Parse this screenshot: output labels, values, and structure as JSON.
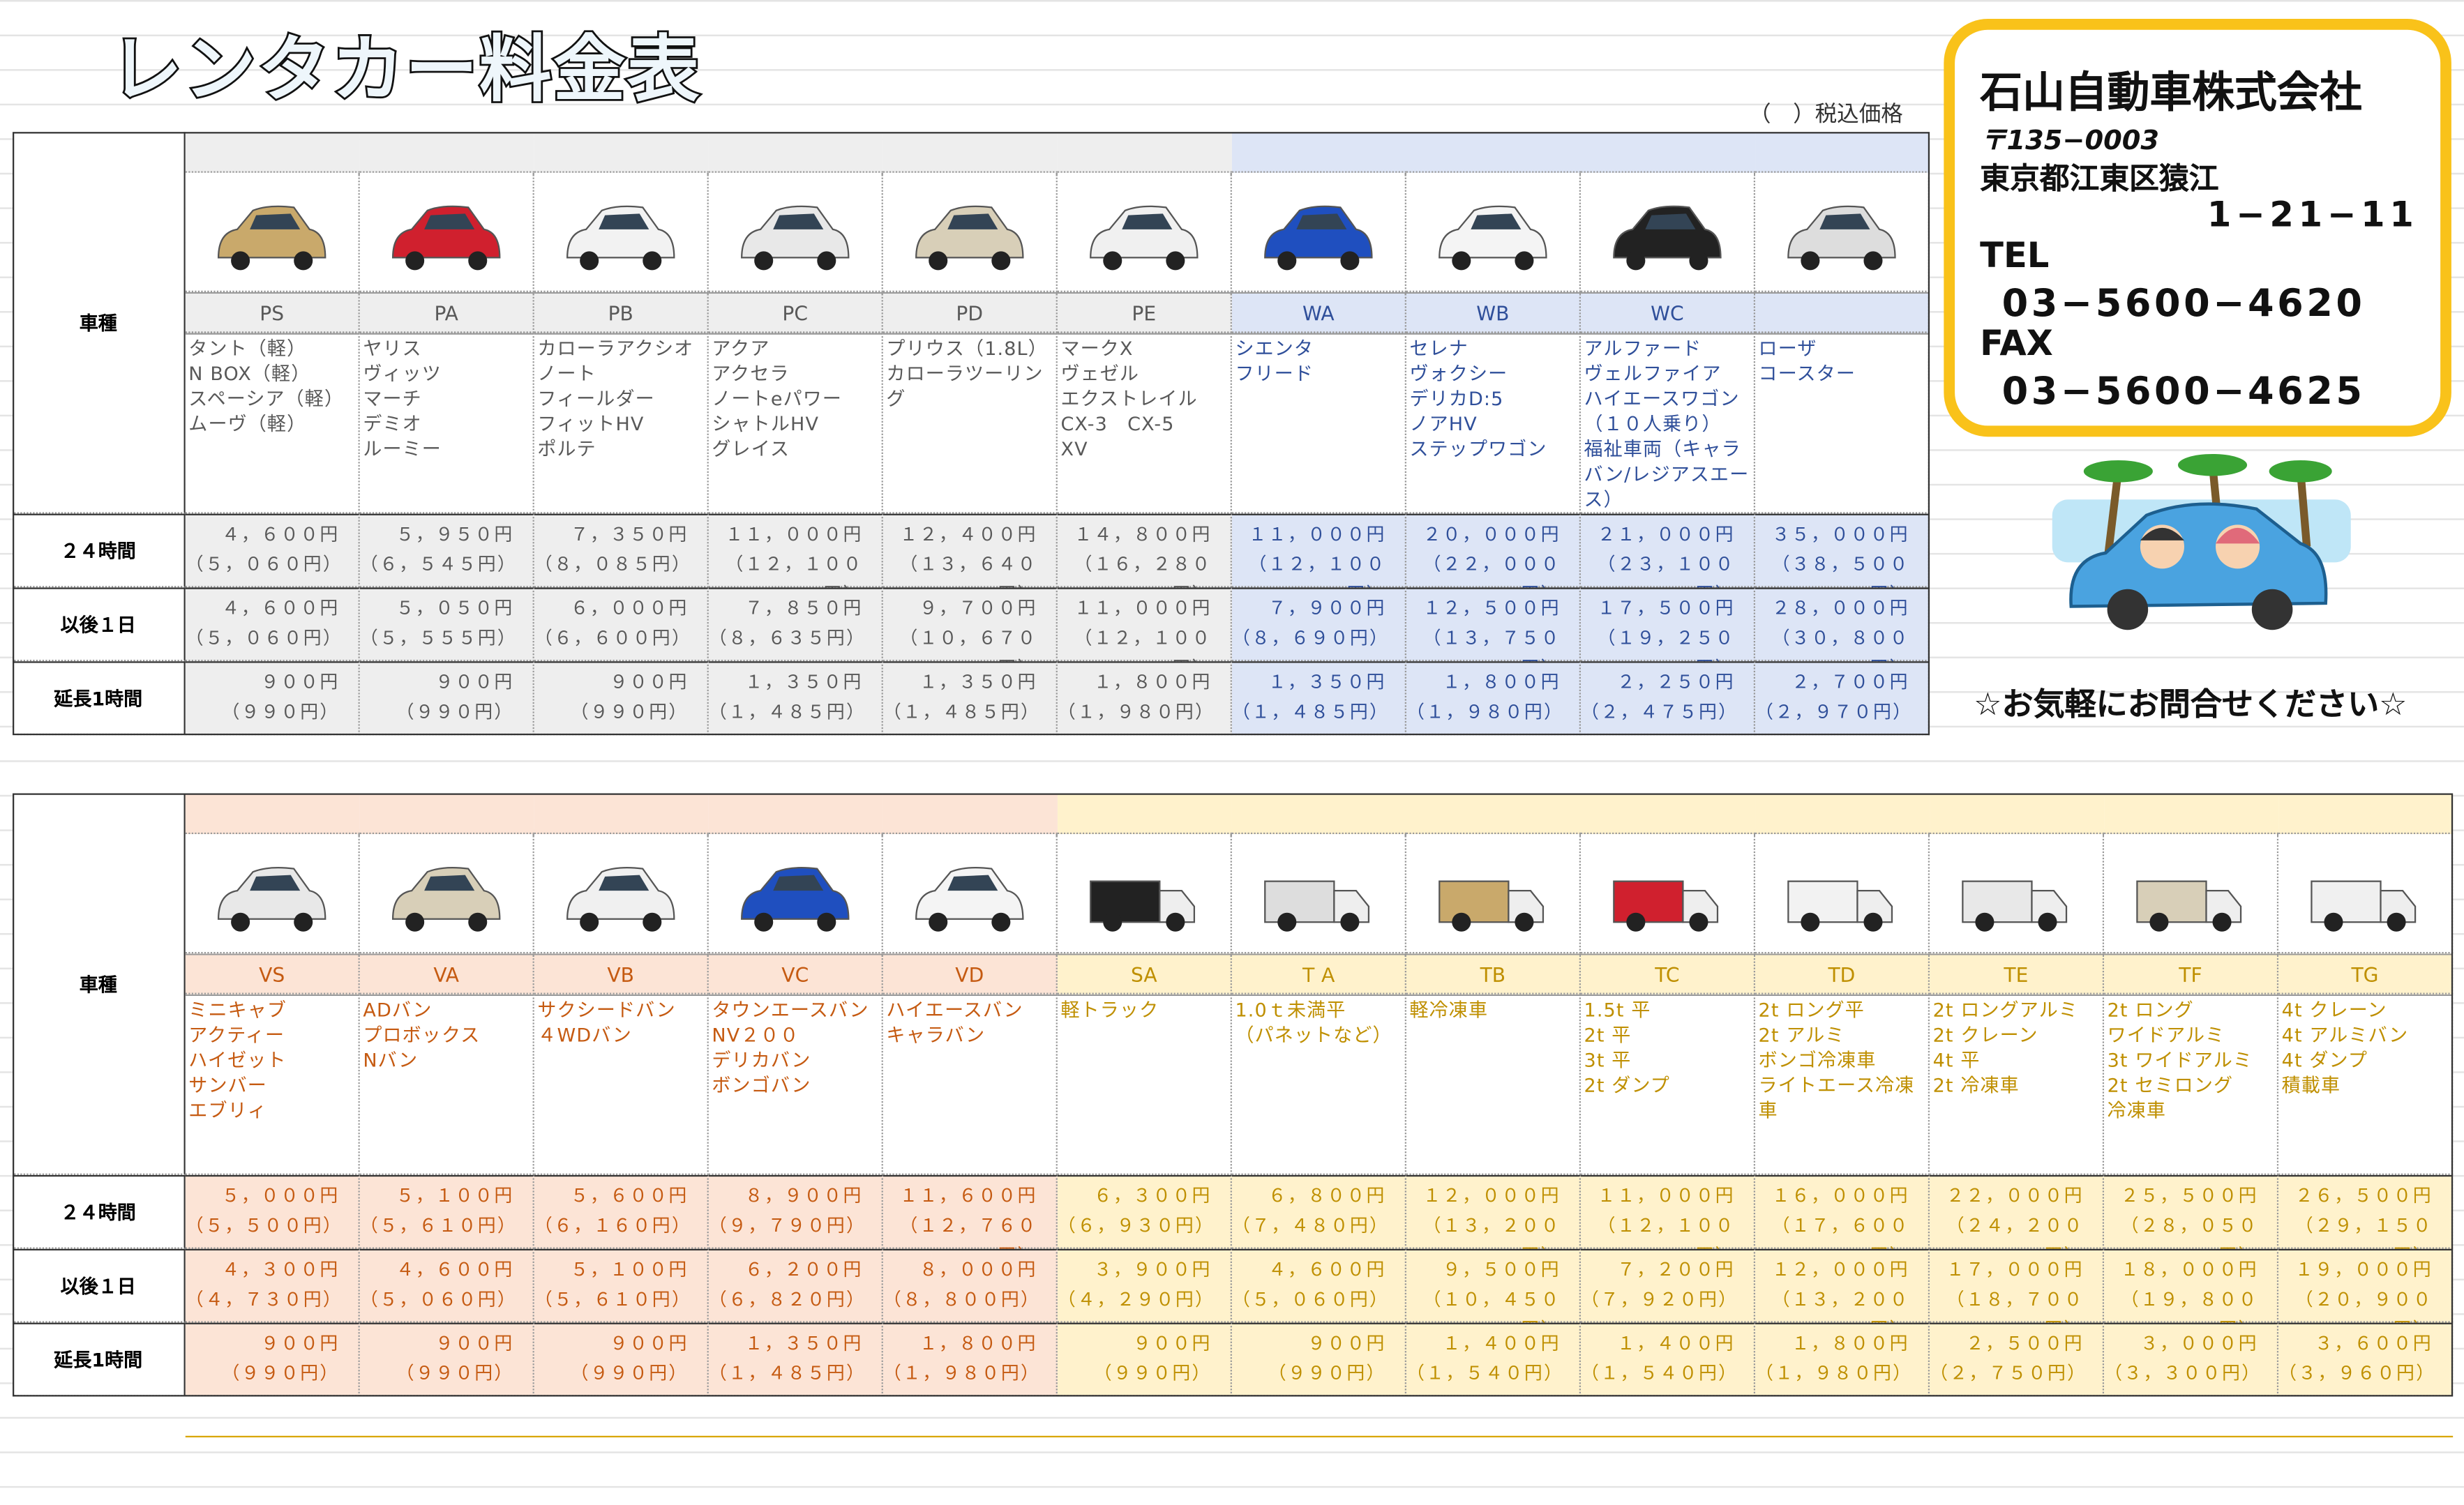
{
  "header": {
    "title": "レンタカー料金表",
    "tax_note": "（　）税込価格"
  },
  "company": {
    "name": "石山自動車株式会社",
    "postal": "〒135−0003",
    "address1": "東京都江東区猿江",
    "address2": "1−21−11",
    "tel_label": "TEL",
    "tel": "03−5600−4620",
    "fax_label": "FAX",
    "fax": "03−5600−4625",
    "slogan": "☆お気軽にお問合せください☆"
  },
  "tables": [
    {
      "row_labels": [
        "車種",
        "２４時間",
        "以後１日",
        "延長1時間"
      ],
      "groups": [
        {
          "fill": "#eeeeee",
          "text": "#595959",
          "columns": [
            {
              "code": "PS",
              "models": [
                "タント（軽）",
                "N BOX（軽）",
                "スペーシア（軽）",
                "ムーヴ（軽）"
              ],
              "rates": [
                [
                  "４，６００円",
                  "（５，０６０円）"
                ],
                [
                  "４，６００円",
                  "（５，０６０円）"
                ],
                [
                  "９００円",
                  "（９９０円）"
                ]
              ]
            },
            {
              "code": "PA",
              "models": [
                "ヤリス",
                "ヴィッツ",
                "マーチ",
                "デミオ",
                "ルーミー"
              ],
              "rates": [
                [
                  "５，９５０円",
                  "（６，５４５円）"
                ],
                [
                  "５，０５０円",
                  "（５，５５５円）"
                ],
                [
                  "９００円",
                  "（９９０円）"
                ]
              ]
            },
            {
              "code": "PB",
              "models": [
                "カローラアクシオ",
                "ノート",
                "フィールダー",
                "フィットHV",
                "ポルテ"
              ],
              "rates": [
                [
                  "７，３５０円",
                  "（８，０８５円）"
                ],
                [
                  "６，０００円",
                  "（６，６００円）"
                ],
                [
                  "９００円",
                  "（９９０円）"
                ]
              ]
            },
            {
              "code": "PC",
              "models": [
                "アクア",
                "アクセラ",
                "ノートeパワー",
                "シャトルHV",
                "グレイス"
              ],
              "rates": [
                [
                  "１１，０００円",
                  "（１２，１００円）"
                ],
                [
                  "７，８５０円",
                  "（８，６３５円）"
                ],
                [
                  "１，３５０円",
                  "（１，４８５円）"
                ]
              ]
            },
            {
              "code": "PD",
              "models": [
                "プリウス（1.8L）",
                "カローラツーリング"
              ],
              "rates": [
                [
                  "１２，４００円",
                  "（１３，６４０円）"
                ],
                [
                  "９，７００円",
                  "（１０，６７０円）"
                ],
                [
                  "１，３５０円",
                  "（１，４８５円）"
                ]
              ]
            },
            {
              "code": "PE",
              "models": [
                "マークX",
                "ヴェゼル",
                "エクストレイル",
                "CX-3　CX-5",
                "XV"
              ],
              "rates": [
                [
                  "１４，８００円",
                  "（１６，２８０円）"
                ],
                [
                  "１１，０００円",
                  "（１２，１００円）"
                ],
                [
                  "１，８００円",
                  "（１，９８０円）"
                ]
              ]
            }
          ]
        },
        {
          "fill": "#dde5f6",
          "text": "#2f4f9a",
          "columns": [
            {
              "code": "WA",
              "models": [
                "シエンタ",
                "フリード"
              ],
              "rates": [
                [
                  "１１，０００円",
                  "（１２，１００円）"
                ],
                [
                  "７，９００円",
                  "（８，６９０円）"
                ],
                [
                  "１，３５０円",
                  "（１，４８５円）"
                ]
              ]
            },
            {
              "code": "WB",
              "models": [
                "セレナ",
                "ヴォクシー",
                "デリカD:5",
                "ノアHV",
                "ステップワゴン"
              ],
              "rates": [
                [
                  "２０，０００円",
                  "（２２，０００円）"
                ],
                [
                  "１２，５００円",
                  "（１３，７５０円）"
                ],
                [
                  "１，８００円",
                  "（１，９８０円）"
                ]
              ]
            },
            {
              "code": "WC",
              "models": [
                "アルファード",
                "ヴェルファイア",
                "ハイエースワゴン（１０人乗り）",
                "福祉車両（キャラバン/レジアスエース）"
              ],
              "rates": [
                [
                  "２１，０００円",
                  "（２３，１００円）"
                ],
                [
                  "１７，５００円",
                  "（１９，２５０円）"
                ],
                [
                  "２，２５０円",
                  "（２，４７５円）"
                ]
              ]
            },
            {
              "models": [
                "ローザ",
                "コースター"
              ],
              "rates": [
                [
                  "３５，０００円",
                  "（３８，５００円）"
                ],
                [
                  "２８，０００円",
                  "（３０，８００円）"
                ],
                [
                  "２，７００円",
                  "（２，９７０円）"
                ]
              ]
            }
          ]
        }
      ]
    },
    {
      "row_labels": [
        "車種",
        "２４時間",
        "以後１日",
        "延長1時間"
      ],
      "groups": [
        {
          "fill": "#fce4d6",
          "text": "#c55a11",
          "columns": [
            {
              "code": "VS",
              "models": [
                "ミニキャブ",
                "アクティー",
                "ハイゼット",
                "サンバー",
                "エブリィ"
              ],
              "rates": [
                [
                  "５，０００円",
                  "（５，５００円）"
                ],
                [
                  "４，３００円",
                  "（４，７３０円）"
                ],
                [
                  "９００円",
                  "（９９０円）"
                ]
              ]
            },
            {
              "code": "VA",
              "models": [
                "ADバン",
                "プロボックス",
                "Nバン"
              ],
              "rates": [
                [
                  "５，１００円",
                  "（５，６１０円）"
                ],
                [
                  "４，６００円",
                  "（５，０６０円）"
                ],
                [
                  "９００円",
                  "（９９０円）"
                ]
              ]
            },
            {
              "code": "VB",
              "models": [
                "サクシードバン",
                "４WDバン"
              ],
              "rates": [
                [
                  "５，６００円",
                  "（６，１６０円）"
                ],
                [
                  "５，１００円",
                  "（５，６１０円）"
                ],
                [
                  "９００円",
                  "（９９０円）"
                ]
              ]
            },
            {
              "code": "VC",
              "models": [
                "タウンエースバン",
                "NV２００",
                "デリカバン",
                "ボンゴバン"
              ],
              "rates": [
                [
                  "８，９００円",
                  "（９，７９０円）"
                ],
                [
                  "６，２００円",
                  "（６，８２０円）"
                ],
                [
                  "１，３５０円",
                  "（１，４８５円）"
                ]
              ]
            },
            {
              "code": "VD",
              "models": [
                "ハイエースバン",
                "キャラバン"
              ],
              "rates": [
                [
                  "１１，６００円",
                  "（１２，７６０円）"
                ],
                [
                  "８，０００円",
                  "（８，８００円）"
                ],
                [
                  "１，８００円",
                  "（１，９８０円）"
                ]
              ]
            }
          ]
        },
        {
          "fill": "#fff2cc",
          "text": "#bf8f00",
          "columns": [
            {
              "code": "SA",
              "models": [
                "軽トラック"
              ],
              "rates": [
                [
                  "６，３００円",
                  "（６，９３０円）"
                ],
                [
                  "３，９００円",
                  "（４，２９０円）"
                ],
                [
                  "９００円",
                  "（９９０円）"
                ]
              ]
            },
            {
              "code": "ＴＡ",
              "models": [
                "1.0ｔ未満平",
                "（パネットなど）"
              ],
              "rates": [
                [
                  "６，８００円",
                  "（７，４８０円）"
                ],
                [
                  "４，６００円",
                  "（５，０６０円）"
                ],
                [
                  "９００円",
                  "（９９０円）"
                ]
              ]
            },
            {
              "code": "TB",
              "models": [
                "軽冷凍車"
              ],
              "rates": [
                [
                  "１２，０００円",
                  "（１３，２００円）"
                ],
                [
                  "９，５００円",
                  "（１０，４５０円）"
                ],
                [
                  "１，４００円",
                  "（１，５４０円）"
                ]
              ]
            },
            {
              "code": "TC",
              "models": [
                "1.5t 平",
                "2t 平",
                "3t 平",
                "2t ダンプ"
              ],
              "rates": [
                [
                  "１１，０００円",
                  "（１２，１００円）"
                ],
                [
                  "７，２００円",
                  "（７，９２０円）"
                ],
                [
                  "１，４００円",
                  "（１，５４０円）"
                ]
              ]
            },
            {
              "code": "TD",
              "models": [
                "2t ロング平",
                "2t アルミ",
                "ボンゴ冷凍車",
                "ライトエース冷凍車"
              ],
              "rates": [
                [
                  "１６，０００円",
                  "（１７，６００円）"
                ],
                [
                  "１２，０００円",
                  "（１３，２００円）"
                ],
                [
                  "１，８００円",
                  "（１，９８０円）"
                ]
              ]
            },
            {
              "code": "TE",
              "models": [
                "2t ロングアルミ",
                "2t クレーン",
                "4t 平",
                "2t 冷凍車"
              ],
              "rates": [
                [
                  "２２，０００円",
                  "（２４，２００円）"
                ],
                [
                  "１７，０００円",
                  "（１８，７００円）"
                ],
                [
                  "２，５００円",
                  "（２，７５０円）"
                ]
              ]
            },
            {
              "code": "TF",
              "models": [
                "2t ロング",
                "ワイドアルミ",
                "3t ワイドアルミ",
                "2t セミロング",
                "冷凍車"
              ],
              "rates": [
                [
                  "２５，５００円",
                  "（２８，０５０円）"
                ],
                [
                  "１８，０００円",
                  "（１９，８００円）"
                ],
                [
                  "３，０００円",
                  "（３，３００円）"
                ]
              ]
            },
            {
              "code": "TG",
              "models": [
                "4t クレーン",
                "4t アルミバン",
                "4t ダンプ",
                "積載車"
              ],
              "rates": [
                [
                  "２６，５００円",
                  "（２９，１５０円）"
                ],
                [
                  "１９，０００円",
                  "（２０，９００円）"
                ],
                [
                  "３，６００円",
                  "（３，９６０円）"
                ]
              ]
            }
          ]
        }
      ]
    }
  ]
}
